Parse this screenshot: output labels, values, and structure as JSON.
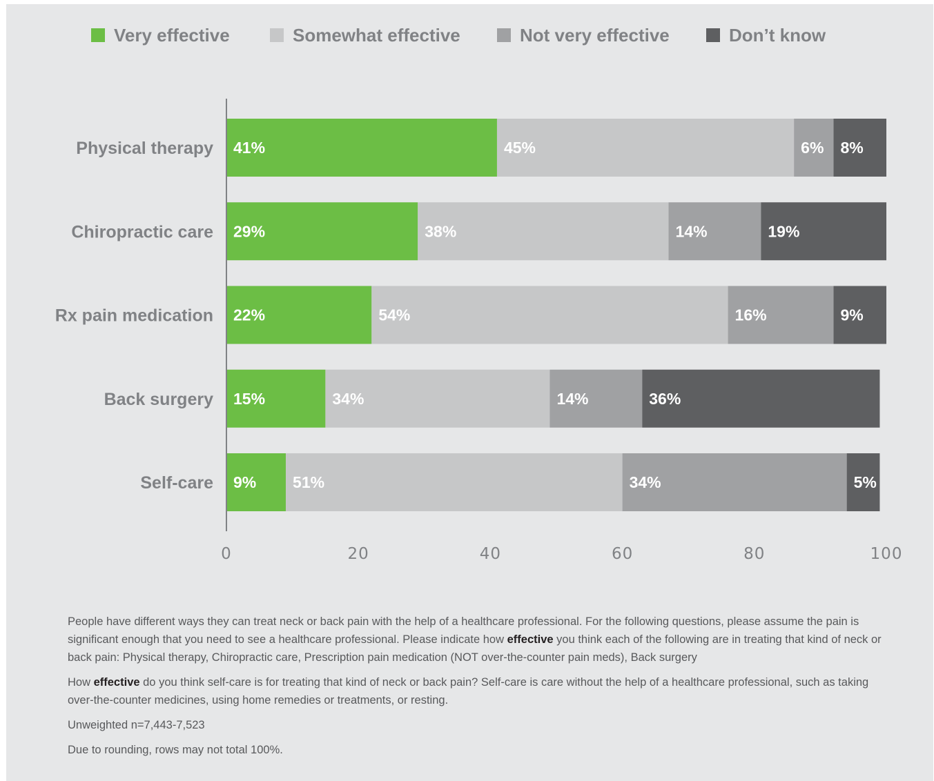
{
  "chart_data": {
    "type": "bar",
    "orientation": "horizontal",
    "stacked": true,
    "categories": [
      "Physical therapy",
      "Chiropractic care",
      "Rx pain medication",
      "Back surgery",
      "Self-care"
    ],
    "series": [
      {
        "name": "Very effective",
        "color": "#6cbe45",
        "values": [
          41,
          29,
          22,
          15,
          9
        ]
      },
      {
        "name": "Somewhat effective",
        "color": "#c6c7c8",
        "values": [
          45,
          38,
          54,
          34,
          51
        ]
      },
      {
        "name": "Not very effective",
        "color": "#a0a1a3",
        "values": [
          6,
          14,
          16,
          14,
          34
        ]
      },
      {
        "name": "Don’t know",
        "color": "#5e5f61",
        "values": [
          8,
          19,
          9,
          36,
          5
        ]
      }
    ],
    "value_suffix": "%",
    "xlim": [
      0,
      100
    ],
    "xticks": [
      "0",
      "20",
      "40",
      "60",
      "80",
      "100"
    ],
    "legend_position": "top",
    "grid": false
  },
  "notes": {
    "q1_part1": "People have different ways they can treat neck or back pain with the help of a healthcare professional. For the following questions, please assume the pain is significant enough that you need to see a healthcare professional. Please indicate how ",
    "q1_bold": "effective",
    "q1_part2": " you think each of the following are in treating that kind of neck or back pain: Physical therapy, Chiropractic care, Prescription pain medication (NOT over-the-counter pain meds), Back surgery",
    "q2_part1": "How ",
    "q2_bold": "effective",
    "q2_part2": " do you think self-care is for treating that kind of neck or back pain? Self-care is care without the help of a healthcare professional, such as taking over-the-counter medicines, using home remedies or treatments, or resting.",
    "sample": "Unweighted n=7,443-7,523",
    "rounding": "Due to rounding, rows may not total 100%."
  }
}
